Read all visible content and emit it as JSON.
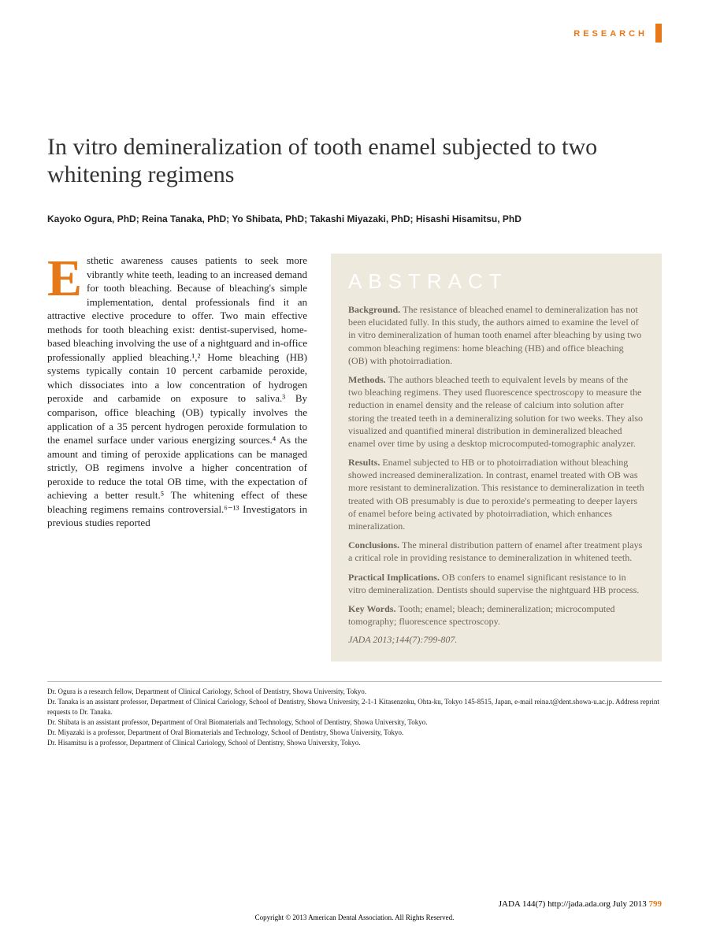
{
  "colors": {
    "research_text": "#e67817",
    "research_bar": "#e67817",
    "title": "#333333",
    "dropcap": "#e67817",
    "abstract_bg": "#ede9dc",
    "abstract_heading": "#ffffff",
    "abstract_text": "#6b6556",
    "body_text": "#222222",
    "footer_text": "#222222",
    "pageno": "#e67817"
  },
  "fonts": {
    "title_size": 30,
    "author_size": 12,
    "body_size": 13,
    "dropcap_size": 66,
    "abstract_heading_size": 26,
    "abstract_body_size": 12,
    "affiliation_size": 9,
    "footer_size": 11,
    "copyright_size": 9
  },
  "header": {
    "research_label": "RESEARCH"
  },
  "title": "In vitro demineralization of tooth enamel subjected to two whitening regimens",
  "authors": "Kayoko Ogura, PhD; Reina Tanaka, PhD; Yo Shibata, PhD; Takashi Miyazaki, PhD; Hisashi Hisamitsu, PhD",
  "body": {
    "dropcap": "E",
    "text": "sthetic awareness causes patients to seek more vibrantly white teeth, leading to an increased demand for tooth bleaching. Because of bleaching's simple implementation, dental professionals find it an attractive elective procedure to offer. Two main effective methods for tooth bleaching exist: dentist-supervised, home-based bleaching involving the use of a nightguard and in-office professionally applied bleaching.¹,² Home bleaching (HB) systems typically contain 10 percent carbamide peroxide, which dissociates into a low concentration of hydrogen peroxide and carbamide on exposure to saliva.³ By comparison, office bleaching (OB) typically involves the application of a 35 percent hydrogen peroxide formulation to the enamel surface under various energizing sources.⁴ As the amount and timing of peroxide applications can be managed strictly, OB regimens involve a higher concentration of peroxide to reduce the total OB time, with the expectation of achieving a better result.⁵ The whitening effect of these bleaching regimens remains controversial.⁶⁻¹³ Investigators in previous studies reported"
  },
  "abstract": {
    "heading": "ABSTRACT",
    "sections": [
      {
        "label": "Background.",
        "text": "The resistance of bleached enamel to demineralization has not been elucidated fully. In this study, the authors aimed to examine the level of in vitro demineralization of human tooth enamel after bleaching by using two common bleaching regimens: home bleaching (HB) and office bleaching (OB) with photoirradiation."
      },
      {
        "label": "Methods.",
        "text": "The authors bleached teeth to equivalent levels by means of the two bleaching regimens. They used fluorescence spectroscopy to measure the reduction in enamel density and the release of calcium into solution after storing the treated teeth in a demineralizing solution for two weeks. They also visualized and quantified mineral distribution in demineralized bleached enamel over time by using a desktop microcomputed-tomographic analyzer."
      },
      {
        "label": "Results.",
        "text": "Enamel subjected to HB or to photoirradiation without bleaching showed increased demineralization. In contrast, enamel treated with OB was more resistant to demineralization. This resistance to demineralization in teeth treated with OB presumably is due to peroxide's permeating to deeper layers of enamel before being activated by photoirradiation, which enhances mineralization."
      },
      {
        "label": "Conclusions.",
        "text": "The mineral distribution pattern of enamel after treatment plays a critical role in providing resistance to demineralization in whitened teeth."
      },
      {
        "label": "Practical Implications.",
        "text": "OB confers to enamel significant resistance to in vitro demineralization. Dentists should supervise the nightguard HB process."
      },
      {
        "label": "Key Words.",
        "text": "Tooth; enamel; bleach; demineralization; microcomputed tomography; fluorescence spectroscopy."
      }
    ],
    "citation": "JADA 2013;144(7):799-807."
  },
  "affiliations": [
    "Dr. Ogura is a research fellow, Department of Clinical Cariology, School of Dentistry, Showa University, Tokyo.",
    "Dr. Tanaka is an assistant professor, Department of Clinical Cariology, School of Dentistry, Showa University, 2-1-1 Kitasenzoku, Ohta-ku, Tokyo 145-8515, Japan, e-mail reina.t@dent.showa-u.ac.jp. Address reprint requests to Dr. Tanaka.",
    "Dr. Shibata is an assistant professor, Department of Oral Biomaterials and Technology, School of Dentistry, Showa University, Tokyo.",
    "Dr. Miyazaki is a professor, Department of Oral Biomaterials and Technology, School of Dentistry, Showa University, Tokyo.",
    "Dr. Hisamitsu is a professor, Department of Clinical Cariology, School of Dentistry, Showa University, Tokyo."
  ],
  "footer": {
    "line": "JADA 144(7)   http://jada.ada.org   July 2013",
    "pageno": "799",
    "copyright": "Copyright © 2013 American Dental Association. All Rights Reserved."
  }
}
